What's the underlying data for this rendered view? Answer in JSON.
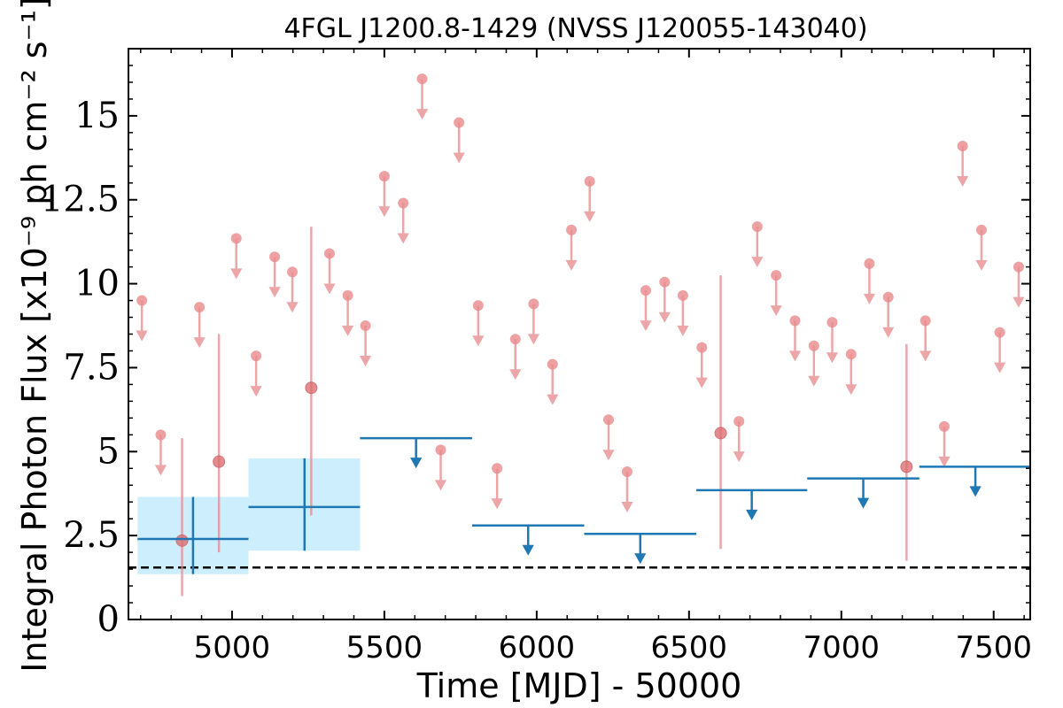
{
  "chart_data": {
    "type": "scatter",
    "title": "4FGL J1200.8-1429 (NVSS J120055-143040)",
    "xlabel": "Time [MJD] - 50000",
    "ylabel": "Integral Photon Flux [x10⁻⁹ ph cm⁻² s⁻¹]",
    "xlim": [
      4660,
      7620
    ],
    "ylim": [
      0,
      17
    ],
    "xticks": [
      5000,
      5500,
      6000,
      6500,
      7000,
      7500
    ],
    "xtick_labels": [
      "5000",
      "5500",
      "6000",
      "6500",
      "7000",
      "7500"
    ],
    "yticks": [
      0,
      2.5,
      5,
      7.5,
      10,
      12.5,
      15
    ],
    "ytick_labels": [
      "0",
      "2.5",
      "5",
      "7.5",
      "10",
      "12.5",
      "15"
    ],
    "reference_line": {
      "y": 1.55,
      "style": "dashed",
      "color": "#000000"
    },
    "colors": {
      "fine": "#e8898c",
      "coarse": "#1f77b4",
      "band": "#cdeefc"
    },
    "series": [
      {
        "kind": "fine_upper_limits",
        "points": [
          {
            "x": 4704,
            "y": 9.5
          },
          {
            "x": 4766,
            "y": 5.5
          },
          {
            "x": 4893,
            "y": 9.3
          },
          {
            "x": 5014,
            "y": 11.35
          },
          {
            "x": 5079,
            "y": 7.85
          },
          {
            "x": 5140,
            "y": 10.8
          },
          {
            "x": 5198,
            "y": 10.35
          },
          {
            "x": 5320,
            "y": 10.9
          },
          {
            "x": 5380,
            "y": 9.65
          },
          {
            "x": 5438,
            "y": 8.75
          },
          {
            "x": 5500,
            "y": 13.2
          },
          {
            "x": 5562,
            "y": 12.4
          },
          {
            "x": 5624,
            "y": 16.1
          },
          {
            "x": 5685,
            "y": 5.05
          },
          {
            "x": 5745,
            "y": 14.8
          },
          {
            "x": 5808,
            "y": 9.35
          },
          {
            "x": 5870,
            "y": 4.5
          },
          {
            "x": 5930,
            "y": 8.35
          },
          {
            "x": 5990,
            "y": 9.4
          },
          {
            "x": 6052,
            "y": 7.6
          },
          {
            "x": 6114,
            "y": 11.6
          },
          {
            "x": 6174,
            "y": 13.05
          },
          {
            "x": 6236,
            "y": 5.95
          },
          {
            "x": 6297,
            "y": 4.4
          },
          {
            "x": 6358,
            "y": 9.8
          },
          {
            "x": 6420,
            "y": 10.05
          },
          {
            "x": 6480,
            "y": 9.65
          },
          {
            "x": 6542,
            "y": 8.1
          },
          {
            "x": 6664,
            "y": 5.9
          },
          {
            "x": 6724,
            "y": 11.7
          },
          {
            "x": 6786,
            "y": 10.25
          },
          {
            "x": 6848,
            "y": 8.9
          },
          {
            "x": 6910,
            "y": 8.15
          },
          {
            "x": 6970,
            "y": 8.85
          },
          {
            "x": 7032,
            "y": 7.9
          },
          {
            "x": 7092,
            "y": 10.6
          },
          {
            "x": 7154,
            "y": 9.6
          },
          {
            "x": 7276,
            "y": 8.9
          },
          {
            "x": 7338,
            "y": 5.75
          },
          {
            "x": 7398,
            "y": 14.1
          },
          {
            "x": 7460,
            "y": 11.6
          },
          {
            "x": 7520,
            "y": 8.55
          },
          {
            "x": 7582,
            "y": 10.5
          }
        ]
      },
      {
        "kind": "fine_detections",
        "points": [
          {
            "x": 4836,
            "y": 2.35,
            "ylow": 0.7,
            "yhigh": 5.4
          },
          {
            "x": 4957,
            "y": 4.7,
            "ylow": 2.0,
            "yhigh": 8.5
          },
          {
            "x": 5260,
            "y": 6.9,
            "ylow": 3.1,
            "yhigh": 11.7
          },
          {
            "x": 6604,
            "y": 5.55,
            "ylow": 2.1,
            "yhigh": 10.25
          },
          {
            "x": 7214,
            "y": 4.55,
            "ylow": 1.75,
            "yhigh": 8.2
          }
        ]
      },
      {
        "kind": "coarse_detections",
        "points": [
          {
            "x": 4872,
            "x0": 4690,
            "x1": 5054,
            "y": 2.4,
            "ylow": 1.35,
            "yhigh": 3.65
          },
          {
            "x": 5238,
            "x0": 5054,
            "x1": 5420,
            "y": 3.35,
            "ylow": 2.05,
            "yhigh": 4.8
          }
        ]
      },
      {
        "kind": "coarse_upper_limits",
        "points": [
          {
            "x": 5604,
            "x0": 5420,
            "x1": 5788,
            "y": 5.4
          },
          {
            "x": 5972,
            "x0": 5788,
            "x1": 6156,
            "y": 2.8
          },
          {
            "x": 6340,
            "x0": 6156,
            "x1": 6524,
            "y": 2.55
          },
          {
            "x": 6706,
            "x0": 6524,
            "x1": 6888,
            "y": 3.85
          },
          {
            "x": 7072,
            "x0": 6888,
            "x1": 7256,
            "y": 4.2
          },
          {
            "x": 7440,
            "x0": 7256,
            "x1": 7620,
            "y": 4.55
          }
        ]
      }
    ]
  }
}
